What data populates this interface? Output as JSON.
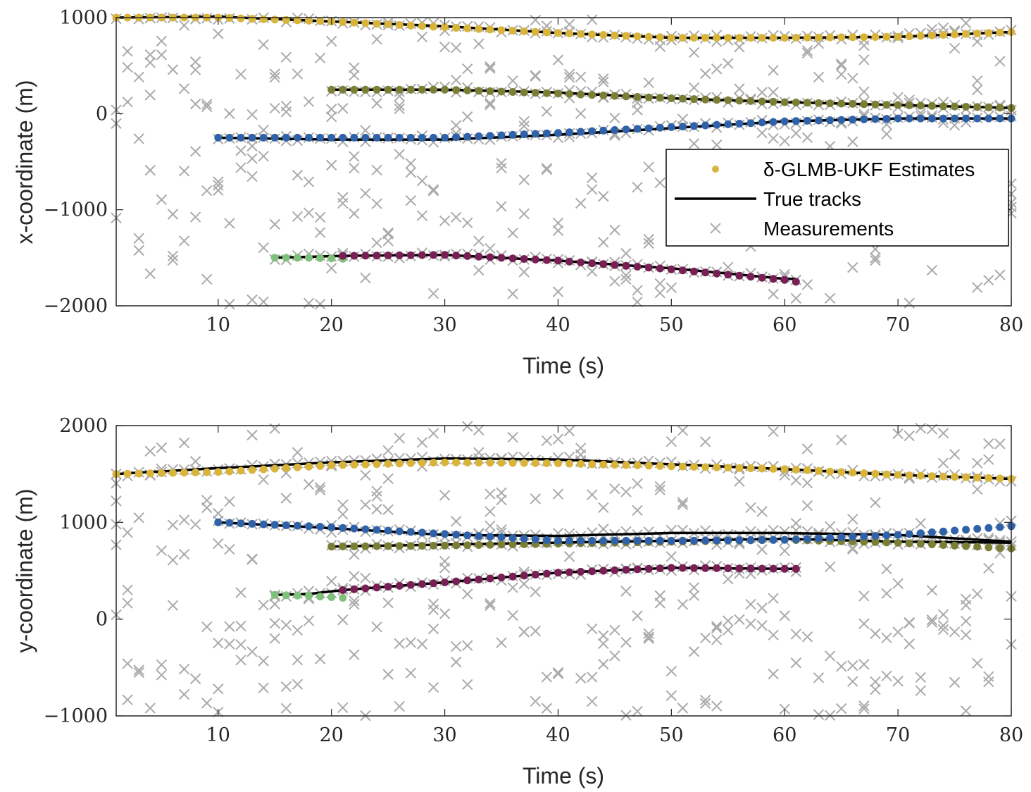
{
  "chart_data": [
    {
      "type": "scatter",
      "id": "x",
      "title": "",
      "xlabel": "Time (s)",
      "ylabel": "x-coordinate (m)",
      "xlim": [
        1,
        80
      ],
      "ylim": [
        -2000,
        1000
      ],
      "xticks": [
        10,
        20,
        30,
        40,
        50,
        60,
        70,
        80
      ],
      "xtick_labels": [
        "10",
        "20",
        "30",
        "40",
        "50",
        "60",
        "70",
        "80"
      ],
      "yticks": [
        -2000,
        -1000,
        0,
        1000
      ],
      "ytick_labels": [
        "−2000",
        "−1000",
        "0",
        "1000"
      ],
      "grid": false,
      "legend_position": "center-right",
      "legend": {
        "estimates_label": "δ-GLMB-UKF Estimates",
        "truth_label": "True tracks",
        "measurements_label": "Measurements"
      },
      "colors": {
        "truth": "#000000",
        "measurements": "#ababab"
      },
      "tracks": [
        {
          "name": "track-1",
          "color": "#d9b43b",
          "t": [
            1,
            10,
            20,
            30,
            40,
            50,
            60,
            70,
            80
          ],
          "truth": [
            1000,
            1010,
            960,
            910,
            840,
            790,
            790,
            800,
            850
          ],
          "estimate": [
            1000,
            1000,
            960,
            900,
            840,
            790,
            790,
            800,
            850
          ]
        },
        {
          "name": "track-2",
          "color": "#7b7f35",
          "t": [
            20,
            30,
            40,
            50,
            60,
            70,
            80
          ],
          "truth": [
            250,
            250,
            220,
            160,
            120,
            90,
            60
          ],
          "estimate": [
            250,
            250,
            210,
            160,
            120,
            90,
            60
          ]
        },
        {
          "name": "track-3",
          "color": "#2f62a8",
          "t": [
            10,
            20,
            30,
            40,
            50,
            60,
            70,
            80
          ],
          "truth": [
            -250,
            -270,
            -270,
            -220,
            -150,
            -80,
            -50,
            -50
          ],
          "estimate": [
            -250,
            -250,
            -250,
            -200,
            -140,
            -80,
            -50,
            -50
          ]
        },
        {
          "name": "track-4",
          "color": "#7fc07a",
          "t": [
            15,
            18,
            21
          ],
          "truth": [
            -1500,
            -1490,
            -1480
          ],
          "estimate": [
            -1500,
            -1500,
            -1510
          ]
        },
        {
          "name": "track-5",
          "color": "#782055",
          "t": [
            21,
            30,
            40,
            50,
            60,
            61
          ],
          "truth": [
            -1480,
            -1470,
            -1530,
            -1610,
            -1720,
            -1720
          ],
          "estimate": [
            -1480,
            -1470,
            -1530,
            -1620,
            -1730,
            -1750
          ]
        }
      ]
    },
    {
      "type": "scatter",
      "id": "y",
      "title": "",
      "xlabel": "Time (s)",
      "ylabel": "y-coordinate (m)",
      "xlim": [
        1,
        80
      ],
      "ylim": [
        -1000,
        2000
      ],
      "xticks": [
        10,
        20,
        30,
        40,
        50,
        60,
        70,
        80
      ],
      "xtick_labels": [
        "10",
        "20",
        "30",
        "40",
        "50",
        "60",
        "70",
        "80"
      ],
      "yticks": [
        -1000,
        0,
        1000,
        2000
      ],
      "ytick_labels": [
        "−1000",
        "0",
        "1000",
        "2000"
      ],
      "grid": false,
      "colors": {
        "truth": "#000000",
        "measurements": "#ababab"
      },
      "tracks": [
        {
          "name": "track-1",
          "color": "#d9b43b",
          "t": [
            1,
            10,
            20,
            30,
            40,
            50,
            60,
            70,
            80
          ],
          "truth": [
            1500,
            1560,
            1620,
            1660,
            1650,
            1600,
            1550,
            1490,
            1450
          ],
          "estimate": [
            1500,
            1520,
            1590,
            1620,
            1610,
            1580,
            1550,
            1490,
            1450
          ]
        },
        {
          "name": "track-2",
          "color": "#7b7f35",
          "t": [
            20,
            30,
            40,
            50,
            60,
            70,
            80
          ],
          "truth": [
            750,
            770,
            790,
            810,
            830,
            800,
            790
          ],
          "estimate": [
            750,
            760,
            780,
            800,
            820,
            790,
            730
          ]
        },
        {
          "name": "track-3",
          "color": "#2f62a8",
          "t": [
            10,
            20,
            30,
            40,
            50,
            60,
            70,
            80
          ],
          "truth": [
            1000,
            940,
            870,
            860,
            890,
            890,
            870,
            800
          ],
          "estimate": [
            1000,
            950,
            880,
            810,
            810,
            820,
            870,
            960
          ]
        },
        {
          "name": "track-4",
          "color": "#7fc07a",
          "t": [
            15,
            18,
            21
          ],
          "truth": [
            250,
            260,
            300
          ],
          "estimate": [
            250,
            240,
            220
          ]
        },
        {
          "name": "track-5",
          "color": "#782055",
          "t": [
            21,
            30,
            40,
            50,
            60,
            61
          ],
          "truth": [
            300,
            380,
            480,
            530,
            520,
            520
          ],
          "estimate": [
            300,
            380,
            480,
            530,
            520,
            520
          ]
        }
      ]
    }
  ]
}
